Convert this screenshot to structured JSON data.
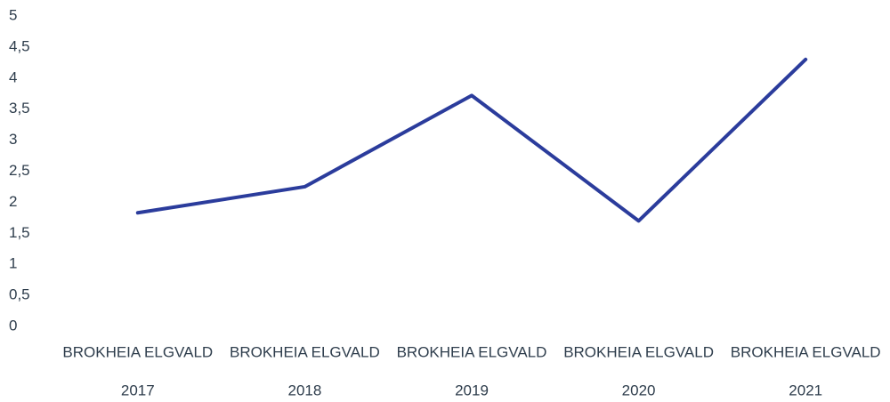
{
  "chart_data": {
    "type": "line",
    "categories": [
      [
        "BROKHEIA ELGVALD",
        "2017"
      ],
      [
        "BROKHEIA ELGVALD",
        "2018"
      ],
      [
        "BROKHEIA ELGVALD",
        "2019"
      ],
      [
        "BROKHEIA ELGVALD",
        "2020"
      ],
      [
        "BROKHEIA ELGVALD",
        "2021"
      ]
    ],
    "values": [
      1.83,
      2.25,
      3.72,
      1.7,
      4.3
    ],
    "color": "#2b3c9c",
    "ylim": [
      0,
      5
    ],
    "yticks": [
      0,
      {
        "value": 0.5,
        "label": "0,5"
      },
      1,
      {
        "value": 1.5,
        "label": "1,5"
      },
      2,
      {
        "value": 2.5,
        "label": "2,5"
      },
      3,
      {
        "value": 3.5,
        "label": "3,5"
      },
      4,
      {
        "value": 4.5,
        "label": "4,5"
      },
      5
    ],
    "grid": false
  }
}
